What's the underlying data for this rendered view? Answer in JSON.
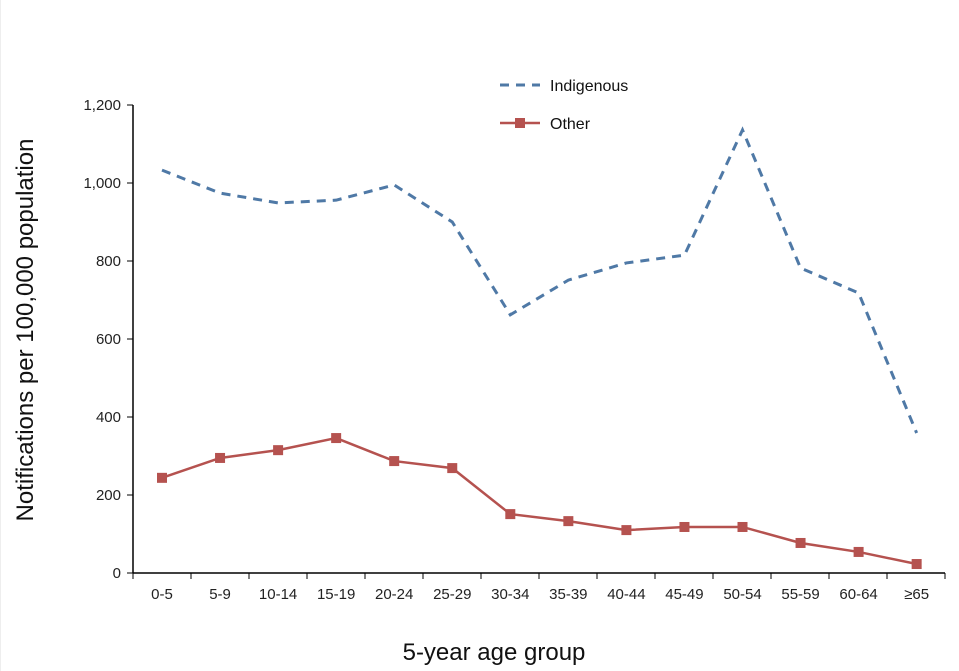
{
  "chart_data": {
    "type": "line",
    "title": "",
    "xlabel": "5-year age group",
    "ylabel": "Notifications per 100,000 population",
    "categories": [
      "0-5",
      "5-9",
      "10-14",
      "15-19",
      "20-24",
      "25-29",
      "30-34",
      "35-39",
      "40-44",
      "45-49",
      "50-54",
      "55-59",
      "60-64",
      "≥65"
    ],
    "ylim": [
      0,
      1200
    ],
    "yticks": [
      0,
      200,
      400,
      600,
      800,
      1000,
      1200
    ],
    "ytick_labels": [
      "0",
      "200",
      "400",
      "600",
      "800",
      "1,000",
      "1,200"
    ],
    "grid": false,
    "legend_position": "top-center",
    "series": [
      {
        "name": "Indigenous",
        "style": "dashed",
        "color": "#4f79a6",
        "values": [
          1033,
          974,
          949,
          956,
          995,
          900,
          662,
          751,
          795,
          815,
          1136,
          782,
          718,
          359
        ]
      },
      {
        "name": "Other",
        "style": "solid-square-markers",
        "color": "#b5524f",
        "values": [
          244,
          295,
          315,
          346,
          287,
          269,
          151,
          133,
          110,
          118,
          118,
          77,
          54,
          23
        ]
      }
    ]
  }
}
